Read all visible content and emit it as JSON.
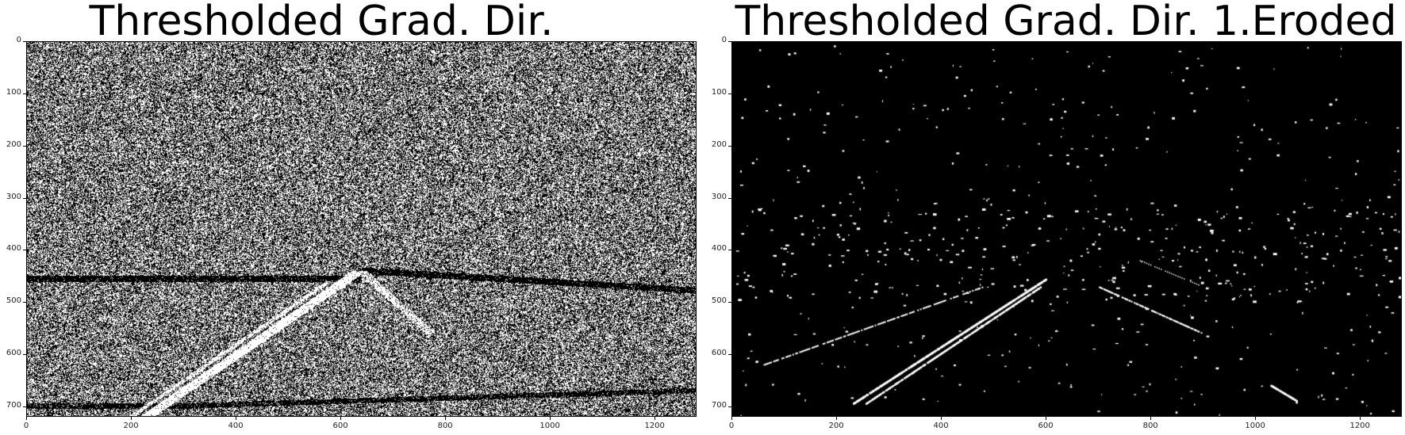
{
  "figure": {
    "panels": [
      {
        "title": "Thresholded Grad. Dir.",
        "image": "dense-noise-edge-direction-binary",
        "x_ticks": [
          "0",
          "200",
          "400",
          "600",
          "800",
          "1000",
          "1200"
        ],
        "y_ticks": [
          "0",
          "100",
          "200",
          "300",
          "400",
          "500",
          "600",
          "700"
        ]
      },
      {
        "title": "Thresholded Grad. Dir. 1.Eroded",
        "image": "sparse-eroded-lane-lines-binary",
        "x_ticks": [
          "0",
          "200",
          "400",
          "600",
          "800",
          "1000",
          "1200"
        ],
        "y_ticks": [
          "0",
          "100",
          "200",
          "300",
          "400",
          "500",
          "600",
          "700"
        ]
      }
    ],
    "image_width": 1280,
    "image_height": 720,
    "colors": {
      "foreground": "#ffffff",
      "background": "#000000"
    }
  }
}
